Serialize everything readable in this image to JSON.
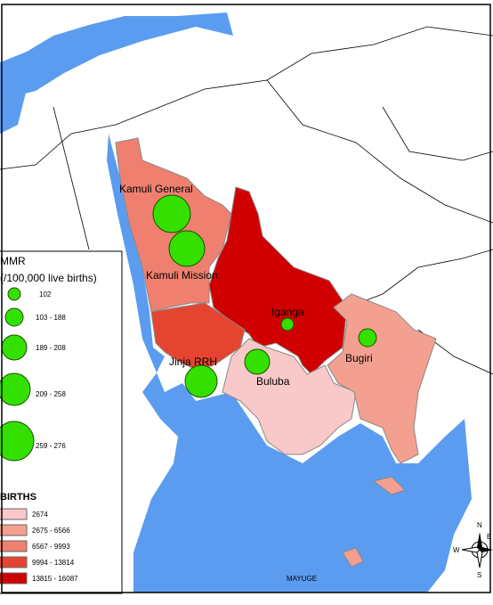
{
  "hospitals": [
    {
      "label": "Kamuli General"
    },
    {
      "label": "Kamuli Mission"
    },
    {
      "label": "Iganga"
    },
    {
      "label": "Jinja RRH"
    },
    {
      "label": "Buluba"
    },
    {
      "label": "Bugiri"
    }
  ],
  "legend_mmr": {
    "title": "MMR",
    "subtitle": "(/100,000 live births)",
    "items": [
      "102",
      "103 - 188",
      "189 - 208",
      "209 - 258",
      "259 - 276"
    ]
  },
  "legend_births": {
    "title": "BIRTHS",
    "items": [
      "2674",
      "2675 - 6566",
      "6567 - 9993",
      "9994 - 13814",
      "13815 - 16087"
    ]
  },
  "district_label": "MAYUGE",
  "compass": {
    "n": "N",
    "e": "E",
    "s": "S",
    "w": "W"
  }
}
